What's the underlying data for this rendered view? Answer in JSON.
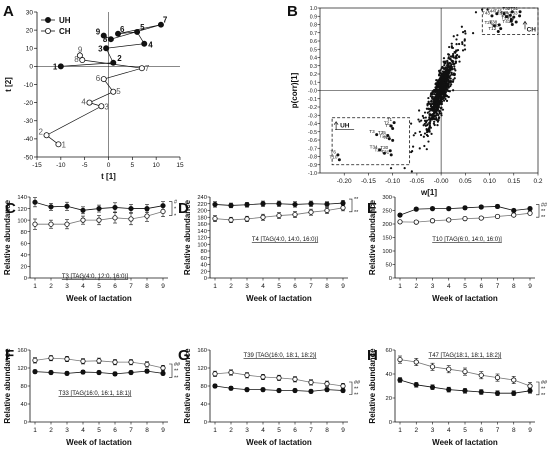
{
  "figure": {
    "background": "#ffffff",
    "ink": "#111111"
  },
  "chart_data": [
    {
      "id": "A",
      "type": "line",
      "panel_label": "A",
      "xlabel": "t [1]",
      "ylabel": "t [2]",
      "xlim": [
        -15,
        15
      ],
      "ylim": [
        -50,
        30
      ],
      "xticks": [
        -15,
        -10,
        -5,
        0,
        5,
        10,
        15
      ],
      "yticks": [
        -50,
        -40,
        -30,
        -20,
        -10,
        0,
        10,
        20,
        30
      ],
      "xtick_labels": [
        "-15",
        "-10",
        "-5",
        "0",
        "5",
        "10",
        "15"
      ],
      "ytick_labels": [
        "-50",
        "-40",
        "-30",
        "-20",
        "-10",
        "0",
        "10",
        "20",
        "30"
      ],
      "legend": {
        "position": "top-left",
        "entries": [
          "UH",
          "CH"
        ]
      },
      "series": [
        {
          "name": "UH",
          "marker": "filled",
          "points": [
            {
              "label": "1",
              "x": -10,
              "y": 0
            },
            {
              "label": "2",
              "x": 1,
              "y": 2
            },
            {
              "label": "3",
              "x": -0.5,
              "y": 10
            },
            {
              "label": "4",
              "x": 7.5,
              "y": 12.5
            },
            {
              "label": "5",
              "x": 6,
              "y": 19
            },
            {
              "label": "6",
              "x": 2,
              "y": 18
            },
            {
              "label": "7",
              "x": 11,
              "y": 23
            },
            {
              "label": "8",
              "x": 0.5,
              "y": 15
            },
            {
              "label": "9",
              "x": -1,
              "y": 17
            }
          ]
        },
        {
          "name": "CH",
          "marker": "open",
          "points": [
            {
              "label": "1",
              "x": -10.5,
              "y": -43
            },
            {
              "label": "2",
              "x": -13,
              "y": -38
            },
            {
              "label": "3",
              "x": -1.5,
              "y": -22
            },
            {
              "label": "4",
              "x": -4,
              "y": -20
            },
            {
              "label": "5",
              "x": 1,
              "y": -14
            },
            {
              "label": "6",
              "x": -1,
              "y": -7
            },
            {
              "label": "7",
              "x": 7,
              "y": -1
            },
            {
              "label": "8",
              "x": -5.5,
              "y": 3.5
            },
            {
              "label": "9",
              "x": -6,
              "y": 6
            }
          ]
        }
      ]
    },
    {
      "id": "B",
      "type": "scatter",
      "panel_label": "B",
      "xlabel": "w[1]",
      "ylabel": "p(corr)[1]",
      "xlim": [
        -0.25,
        0.2
      ],
      "ylim": [
        -1,
        1
      ],
      "xticks": [
        -0.2,
        -0.15,
        -0.1,
        -0.05,
        0,
        0.05,
        0.1,
        0.15,
        0.2
      ],
      "yticks": [
        -1,
        -0.9,
        -0.8,
        -0.7,
        -0.6,
        -0.5,
        -0.4,
        -0.3,
        -0.2,
        -0.1,
        0,
        0.1,
        0.2,
        0.3,
        0.4,
        0.5,
        0.6,
        0.7,
        0.8,
        0.9,
        1
      ],
      "xtick_labels": [
        "-0.20",
        "-0.15",
        "-0.10",
        "-0.05",
        "-0.00",
        "0.05",
        "0.10",
        "0.15",
        "0.2"
      ],
      "ytick_labels": [
        "-1.0",
        "-0.9",
        "-0.8",
        "-0.7",
        "-0.6",
        "-0.5",
        "-0.4",
        "-0.3",
        "-0.2",
        "-0.1",
        "-0.0",
        "0.1",
        "0.2",
        "0.3",
        "0.4",
        "0.5",
        "0.6",
        "0.7",
        "0.8",
        "0.9",
        "1.0"
      ],
      "cloud": {
        "center_x": 0.0,
        "center_y": 0.0,
        "x_spread": 0.014,
        "slope_y_per_x": 16,
        "y_noise": 0.25,
        "count": 800
      },
      "boxes": [
        {
          "name": "CH",
          "x1": 0.085,
          "x2": 0.2,
          "y1": 0.68,
          "y2": 1.0,
          "label_corner": "bottom-right"
        },
        {
          "name": "UH",
          "x1": -0.225,
          "x2": -0.065,
          "y1": -0.9,
          "y2": -0.33,
          "label_corner": "top-left"
        }
      ],
      "labeled_points": [
        {
          "label": "T32",
          "x": 0.147,
          "y": 0.955
        },
        {
          "label": "T31",
          "x": 0.163,
          "y": 0.955
        },
        {
          "label": "T44",
          "x": 0.115,
          "y": 0.93
        },
        {
          "label": "T45",
          "x": 0.13,
          "y": 0.93
        },
        {
          "label": "T36",
          "x": 0.143,
          "y": 0.91
        },
        {
          "label": "T47",
          "x": 0.135,
          "y": 0.895
        },
        {
          "label": "T37",
          "x": 0.15,
          "y": 0.89
        },
        {
          "label": "T33",
          "x": 0.162,
          "y": 0.905
        },
        {
          "label": "T43",
          "x": 0.105,
          "y": 0.905
        },
        {
          "label": "T39",
          "x": 0.145,
          "y": 0.86
        },
        {
          "label": "T29",
          "x": 0.145,
          "y": 0.84
        },
        {
          "label": "T9",
          "x": 0.155,
          "y": 0.83
        },
        {
          "label": "T41",
          "x": 0.147,
          "y": 0.8
        },
        {
          "label": "T38",
          "x": 0.12,
          "y": 0.795
        },
        {
          "label": "T26",
          "x": 0.11,
          "y": 0.785
        },
        {
          "label": "T40",
          "x": 0.123,
          "y": 0.75
        },
        {
          "label": "T12",
          "x": 0.118,
          "y": 0.715
        },
        {
          "label": "T1",
          "x": -0.097,
          "y": -0.39
        },
        {
          "label": "T2",
          "x": -0.103,
          "y": -0.43
        },
        {
          "label": "T7",
          "x": -0.1,
          "y": -0.46
        },
        {
          "label": "T3",
          "x": -0.133,
          "y": -0.535
        },
        {
          "label": "T35",
          "x": -0.11,
          "y": -0.545
        },
        {
          "label": "T22",
          "x": -0.107,
          "y": -0.585
        },
        {
          "label": "T24",
          "x": -0.1,
          "y": -0.605
        },
        {
          "label": "T34",
          "x": -0.127,
          "y": -0.72
        },
        {
          "label": "T30",
          "x": -0.105,
          "y": -0.73
        },
        {
          "label": "T28",
          "x": -0.117,
          "y": -0.76
        },
        {
          "label": "T31",
          "x": -0.103,
          "y": -0.78
        },
        {
          "label": "T6",
          "x": -0.213,
          "y": -0.78
        },
        {
          "label": "T10",
          "x": -0.21,
          "y": -0.84
        }
      ]
    },
    {
      "id": "C",
      "type": "line",
      "panel_label": "C",
      "title": "T3 [TAG(4:0, 12:0, 16:0)]",
      "xlabel": "Week of lactation",
      "ylabel": "Relative abundance",
      "x": [
        1,
        2,
        3,
        4,
        5,
        6,
        7,
        8,
        9
      ],
      "xlim": [
        1,
        9
      ],
      "ylim": [
        0,
        140
      ],
      "yticks": [
        0,
        20,
        40,
        60,
        80,
        100,
        120,
        140
      ],
      "ytick_labels": [
        "0",
        "20",
        "40",
        "60",
        "80",
        "100",
        "120",
        "140"
      ],
      "series": [
        {
          "name": "UH",
          "marker": "filled",
          "values": [
            131,
            123,
            124,
            117,
            120,
            122,
            120,
            120,
            125
          ],
          "errors": [
            8,
            6,
            7,
            6,
            6,
            8,
            7,
            7,
            7
          ]
        },
        {
          "name": "CH",
          "marker": "open",
          "values": [
            93,
            93,
            93,
            100,
            100,
            104,
            102,
            107,
            115
          ],
          "errors": [
            9,
            7,
            8,
            7,
            8,
            9,
            10,
            9,
            9
          ]
        }
      ],
      "significance": [
        "#",
        "*",
        "*"
      ]
    },
    {
      "id": "D",
      "type": "line",
      "panel_label": "D",
      "title": "T4 [TAG(4:0, 14:0, 16:0)]",
      "xlabel": "Week of lactation",
      "ylabel": "Relative abundance",
      "x": [
        1,
        2,
        3,
        4,
        5,
        6,
        7,
        8,
        9
      ],
      "xlim": [
        1,
        9
      ],
      "ylim": [
        0,
        240
      ],
      "yticks": [
        0,
        20,
        40,
        60,
        80,
        100,
        120,
        140,
        160,
        180,
        200,
        220,
        240
      ],
      "ytick_labels": [
        "0",
        "20",
        "40",
        "60",
        "80",
        "100",
        "120",
        "140",
        "160",
        "180",
        "200",
        "220",
        "240"
      ],
      "series": [
        {
          "name": "UH",
          "marker": "filled",
          "values": [
            218,
            215,
            217,
            220,
            220,
            218,
            220,
            219,
            222
          ],
          "errors": [
            8,
            7,
            7,
            8,
            8,
            8,
            8,
            7,
            8
          ]
        },
        {
          "name": "CH",
          "marker": "open",
          "values": [
            176,
            172,
            175,
            180,
            185,
            188,
            195,
            200,
            208
          ],
          "errors": [
            9,
            8,
            8,
            9,
            9,
            9,
            9,
            9,
            9
          ]
        }
      ],
      "significance": [
        "**",
        "**"
      ]
    },
    {
      "id": "E",
      "type": "line",
      "panel_label": "E",
      "title": "T10 [TAG(6:0, 14:0, 16:0)]",
      "xlabel": "Week of lactation",
      "ylabel": "Relative abundance",
      "x": [
        1,
        2,
        3,
        4,
        5,
        6,
        7,
        8,
        9
      ],
      "xlim": [
        1,
        9
      ],
      "ylim": [
        0,
        300
      ],
      "yticks": [
        0,
        50,
        100,
        150,
        200,
        250,
        300
      ],
      "ytick_labels": [
        "0",
        "50",
        "100",
        "150",
        "200",
        "250",
        "300"
      ],
      "series": [
        {
          "name": "UH",
          "marker": "filled",
          "values": [
            233,
            255,
            257,
            257,
            260,
            263,
            265,
            250,
            257
          ],
          "errors": [
            6,
            6,
            6,
            6,
            6,
            6,
            7,
            6,
            6
          ]
        },
        {
          "name": "CH",
          "marker": "open",
          "values": [
            208,
            207,
            212,
            215,
            220,
            222,
            228,
            233,
            240
          ],
          "errors": [
            6,
            6,
            6,
            6,
            6,
            6,
            6,
            6,
            6
          ]
        }
      ],
      "significance": [
        "##",
        "**",
        "**"
      ]
    },
    {
      "id": "F",
      "type": "line",
      "panel_label": "F",
      "title": "T33 [TAG(16:0, 16:1, 18:1)]",
      "xlabel": "Week of lactation",
      "ylabel": "Relative abundance",
      "x": [
        1,
        2,
        3,
        4,
        5,
        6,
        7,
        8,
        9
      ],
      "xlim": [
        1,
        9
      ],
      "ylim": [
        0,
        160
      ],
      "yticks": [
        0,
        40,
        80,
        120,
        160
      ],
      "ytick_labels": [
        "0",
        "40",
        "80",
        "120",
        "160"
      ],
      "series": [
        {
          "name": "UH",
          "marker": "filled",
          "values": [
            112,
            110,
            108,
            111,
            110,
            107,
            110,
            113,
            108
          ],
          "errors": [
            4,
            4,
            4,
            4,
            4,
            4,
            4,
            4,
            4
          ]
        },
        {
          "name": "CH",
          "marker": "open",
          "values": [
            137,
            142,
            140,
            135,
            136,
            133,
            133,
            128,
            120
          ],
          "errors": [
            6,
            6,
            6,
            6,
            6,
            6,
            6,
            6,
            6
          ]
        }
      ],
      "significance": [
        "##",
        "**",
        "**"
      ]
    },
    {
      "id": "G",
      "type": "line",
      "panel_label": "G",
      "title": "T39 [TAG(16:0, 18:1, 18:2)]",
      "xlabel": "Week of lactation",
      "ylabel": "Relative abundance",
      "x": [
        1,
        2,
        3,
        4,
        5,
        6,
        7,
        8,
        9
      ],
      "xlim": [
        1,
        9
      ],
      "ylim": [
        0,
        160
      ],
      "yticks": [
        0,
        40,
        80,
        120,
        160
      ],
      "ytick_labels": [
        "0",
        "40",
        "80",
        "120",
        "160"
      ],
      "series": [
        {
          "name": "UH",
          "marker": "filled",
          "values": [
            80,
            75,
            72,
            72,
            70,
            70,
            68,
            72,
            70
          ],
          "errors": [
            4,
            4,
            4,
            4,
            4,
            4,
            4,
            4,
            4
          ]
        },
        {
          "name": "CH",
          "marker": "open",
          "values": [
            107,
            110,
            104,
            100,
            98,
            95,
            88,
            85,
            80
          ],
          "errors": [
            6,
            6,
            6,
            6,
            6,
            6,
            6,
            6,
            6
          ]
        }
      ],
      "significance": [
        "##",
        "**",
        "**"
      ]
    },
    {
      "id": "H",
      "type": "line",
      "panel_label": "H",
      "title": "T47 [TAG(18:1, 18:1, 18:2)]",
      "xlabel": "Week of lactation",
      "ylabel": "Relative abundance",
      "x": [
        1,
        2,
        3,
        4,
        5,
        6,
        7,
        8,
        9
      ],
      "xlim": [
        1,
        9
      ],
      "ylim": [
        0,
        60
      ],
      "yticks": [
        0,
        20,
        40,
        60
      ],
      "ytick_labels": [
        "0",
        "20",
        "40",
        "60"
      ],
      "series": [
        {
          "name": "UH",
          "marker": "filled",
          "values": [
            35,
            31,
            29,
            27,
            26,
            25,
            24,
            24,
            26
          ],
          "errors": [
            2,
            2,
            2,
            2,
            2,
            2,
            2,
            2,
            2
          ]
        },
        {
          "name": "CH",
          "marker": "open",
          "values": [
            52,
            50,
            46,
            44,
            42,
            39,
            37,
            35,
            30
          ],
          "errors": [
            3,
            3,
            3,
            3,
            3,
            3,
            3,
            3,
            3
          ]
        }
      ],
      "significance": [
        "##",
        "**",
        "**"
      ]
    }
  ]
}
